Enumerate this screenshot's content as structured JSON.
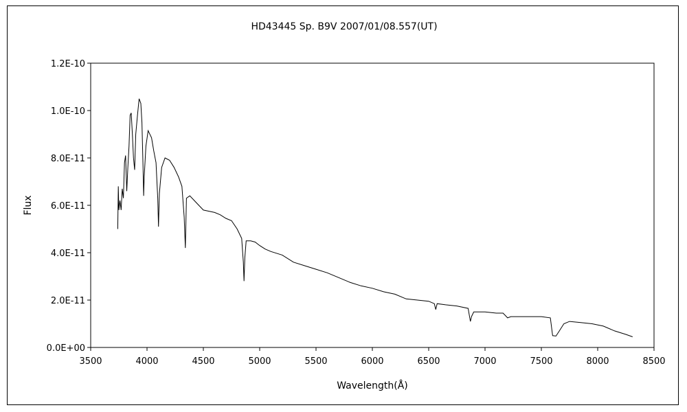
{
  "chart_data": {
    "type": "line",
    "title": "HD43445  Sp. B9V   2007/01/08.557(UT)",
    "xlabel": "Wavelength(Å)",
    "ylabel": "Flux",
    "xlim": [
      3500,
      8500
    ],
    "ylim": [
      0,
      1.2e-10
    ],
    "x_ticks": [
      "3500",
      "4000",
      "4500",
      "5000",
      "5500",
      "6000",
      "6500",
      "7000",
      "7500",
      "8000",
      "8500"
    ],
    "y_ticks": [
      "0.0E+00",
      "2.0E-11",
      "4.0E-11",
      "6.0E-11",
      "8.0E-11",
      "1.0E-10",
      "1.2E-10"
    ],
    "grid": false,
    "legend": "none",
    "line_color": "#000000",
    "series": [
      {
        "points": [
          [
            3740,
            5e-11
          ],
          [
            3745,
            6.8e-11
          ],
          [
            3750,
            5.8e-11
          ],
          [
            3760,
            6.2e-11
          ],
          [
            3770,
            5.8e-11
          ],
          [
            3780,
            6.7e-11
          ],
          [
            3790,
            6.3e-11
          ],
          [
            3800,
            7.8e-11
          ],
          [
            3810,
            8.1e-11
          ],
          [
            3820,
            6.6e-11
          ],
          [
            3830,
            7.6e-11
          ],
          [
            3840,
            8.5e-11
          ],
          [
            3850,
            9.8e-11
          ],
          [
            3860,
            9.9e-11
          ],
          [
            3870,
            9e-11
          ],
          [
            3880,
            8e-11
          ],
          [
            3890,
            7.5e-11
          ],
          [
            3900,
            9e-11
          ],
          [
            3915,
            9.8e-11
          ],
          [
            3930,
            1.05e-10
          ],
          [
            3945,
            1.03e-10
          ],
          [
            3955,
            9.5e-11
          ],
          [
            3965,
            7.5e-11
          ],
          [
            3970,
            6.4e-11
          ],
          [
            3975,
            7.2e-11
          ],
          [
            3990,
            8.5e-11
          ],
          [
            4010,
            9.15e-11
          ],
          [
            4040,
            8.85e-11
          ],
          [
            4060,
            8.3e-11
          ],
          [
            4080,
            7.8e-11
          ],
          [
            4095,
            6.3e-11
          ],
          [
            4102,
            5.1e-11
          ],
          [
            4110,
            6.5e-11
          ],
          [
            4130,
            7.6e-11
          ],
          [
            4160,
            8e-11
          ],
          [
            4200,
            7.9e-11
          ],
          [
            4240,
            7.6e-11
          ],
          [
            4280,
            7.2e-11
          ],
          [
            4310,
            6.8e-11
          ],
          [
            4330,
            5.5e-11
          ],
          [
            4340,
            4.2e-11
          ],
          [
            4350,
            6.3e-11
          ],
          [
            4380,
            6.4e-11
          ],
          [
            4420,
            6.2e-11
          ],
          [
            4460,
            6e-11
          ],
          [
            4500,
            5.8e-11
          ],
          [
            4550,
            5.75e-11
          ],
          [
            4600,
            5.7e-11
          ],
          [
            4650,
            5.6e-11
          ],
          [
            4700,
            5.45e-11
          ],
          [
            4750,
            5.35e-11
          ],
          [
            4800,
            5e-11
          ],
          [
            4840,
            4.6e-11
          ],
          [
            4855,
            3.6e-11
          ],
          [
            4861,
            2.8e-11
          ],
          [
            4868,
            3.8e-11
          ],
          [
            4880,
            4.5e-11
          ],
          [
            4920,
            4.5e-11
          ],
          [
            4960,
            4.45e-11
          ],
          [
            5000,
            4.3e-11
          ],
          [
            5050,
            4.15e-11
          ],
          [
            5100,
            4.05e-11
          ],
          [
            5200,
            3.9e-11
          ],
          [
            5300,
            3.6e-11
          ],
          [
            5400,
            3.45e-11
          ],
          [
            5500,
            3.3e-11
          ],
          [
            5600,
            3.15e-11
          ],
          [
            5700,
            2.95e-11
          ],
          [
            5800,
            2.75e-11
          ],
          [
            5900,
            2.6e-11
          ],
          [
            6000,
            2.5e-11
          ],
          [
            6100,
            2.35e-11
          ],
          [
            6200,
            2.25e-11
          ],
          [
            6300,
            2.05e-11
          ],
          [
            6400,
            2e-11
          ],
          [
            6500,
            1.95e-11
          ],
          [
            6550,
            1.85e-11
          ],
          [
            6563,
            1.6e-11
          ],
          [
            6575,
            1.85e-11
          ],
          [
            6650,
            1.8e-11
          ],
          [
            6750,
            1.75e-11
          ],
          [
            6850,
            1.65e-11
          ],
          [
            6870,
            1.1e-11
          ],
          [
            6880,
            1.3e-11
          ],
          [
            6900,
            1.5e-11
          ],
          [
            7000,
            1.5e-11
          ],
          [
            7100,
            1.45e-11
          ],
          [
            7160,
            1.45e-11
          ],
          [
            7180,
            1.35e-11
          ],
          [
            7200,
            1.25e-11
          ],
          [
            7230,
            1.3e-11
          ],
          [
            7300,
            1.3e-11
          ],
          [
            7400,
            1.3e-11
          ],
          [
            7500,
            1.3e-11
          ],
          [
            7580,
            1.25e-11
          ],
          [
            7600,
            5e-12
          ],
          [
            7630,
            4.8e-12
          ],
          [
            7660,
            7e-12
          ],
          [
            7700,
            1e-11
          ],
          [
            7750,
            1.1e-11
          ],
          [
            7850,
            1.05e-11
          ],
          [
            7950,
            1e-11
          ],
          [
            8050,
            9e-12
          ],
          [
            8150,
            7e-12
          ],
          [
            8250,
            5.5e-12
          ],
          [
            8310,
            4.5e-12
          ]
        ]
      }
    ]
  }
}
